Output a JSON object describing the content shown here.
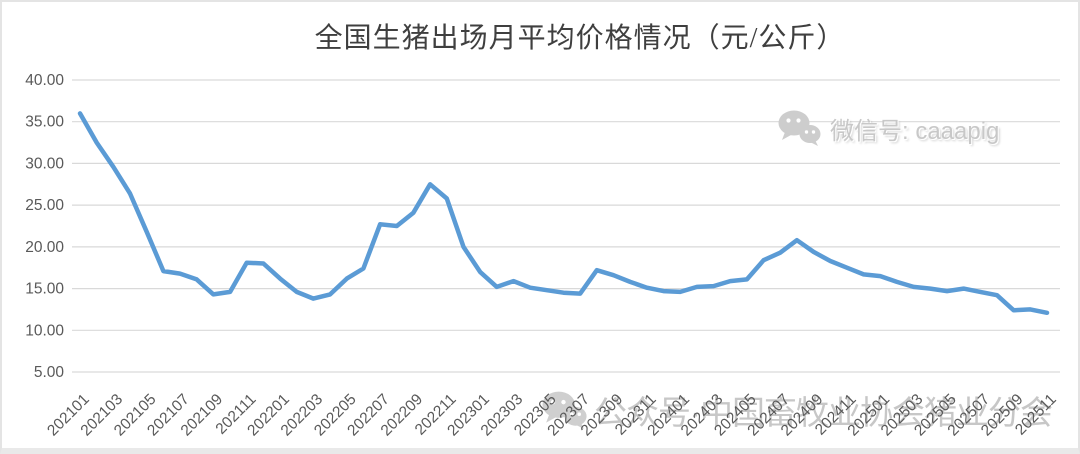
{
  "title": "全国生猪出场月平均价格情况（元/公斤）",
  "watermarks": {
    "top_right": {
      "icon": "wechat-icon",
      "text": "微信号: caaapig"
    },
    "bottom": {
      "icon": "wechat-icon",
      "text": "公众号·中国畜牧业协会猪业分会"
    }
  },
  "colors": {
    "line": "#5B9BD5",
    "gridline": "#D9D9D9",
    "axis_line": "#D9D9D9",
    "axis_text": "#595959",
    "title_text": "#3F3F3F",
    "watermark_top": "#C8C8C8",
    "watermark_bottom": "#9B9B9B",
    "frame_border": "#E4E4E4"
  },
  "chart_data": {
    "type": "line",
    "title": "全国生猪出场月平均价格情况（元/公斤）",
    "series_name": "全国生猪出场月平均价格",
    "categories": [
      "202101",
      "202102",
      "202103",
      "202104",
      "202105",
      "202106",
      "202107",
      "202108",
      "202109",
      "202110",
      "202111",
      "202112",
      "202201",
      "202202",
      "202203",
      "202204",
      "202205",
      "202206",
      "202207",
      "202208",
      "202209",
      "202210",
      "202211",
      "202212",
      "202301",
      "202302",
      "202303",
      "202304",
      "202305",
      "202306",
      "202307",
      "202308",
      "202309",
      "202310",
      "202311",
      "202312",
      "202401",
      "202402",
      "202403",
      "202404",
      "202405",
      "202406",
      "202407",
      "202408",
      "202409",
      "202410",
      "202411",
      "202412",
      "202501",
      "202502",
      "202503",
      "202504",
      "202505",
      "202506",
      "202507",
      "202508",
      "202509",
      "202510",
      "202511"
    ],
    "values": [
      36.0,
      32.5,
      29.6,
      26.4,
      21.8,
      17.1,
      16.8,
      16.1,
      14.3,
      14.6,
      18.1,
      18.0,
      16.2,
      14.6,
      13.8,
      14.3,
      16.2,
      17.4,
      22.7,
      22.5,
      24.1,
      27.5,
      25.8,
      20.0,
      17.0,
      15.2,
      15.9,
      15.1,
      14.8,
      14.5,
      14.4,
      17.2,
      16.6,
      15.8,
      15.1,
      14.7,
      14.6,
      15.2,
      15.3,
      15.9,
      16.1,
      18.4,
      19.3,
      20.8,
      19.4,
      18.3,
      17.5,
      16.7,
      16.5,
      15.8,
      15.2,
      15.0,
      14.7,
      15.0,
      14.6,
      14.2,
      12.4,
      12.5,
      12.1
    ],
    "xlabel": "",
    "ylabel": "",
    "ylim": [
      5,
      40
    ],
    "ytick_step": 5,
    "ytick_decimals": 2,
    "xtick_every": 2,
    "xtick_rotation": 45,
    "grid": "horizontal",
    "legend": "none"
  }
}
